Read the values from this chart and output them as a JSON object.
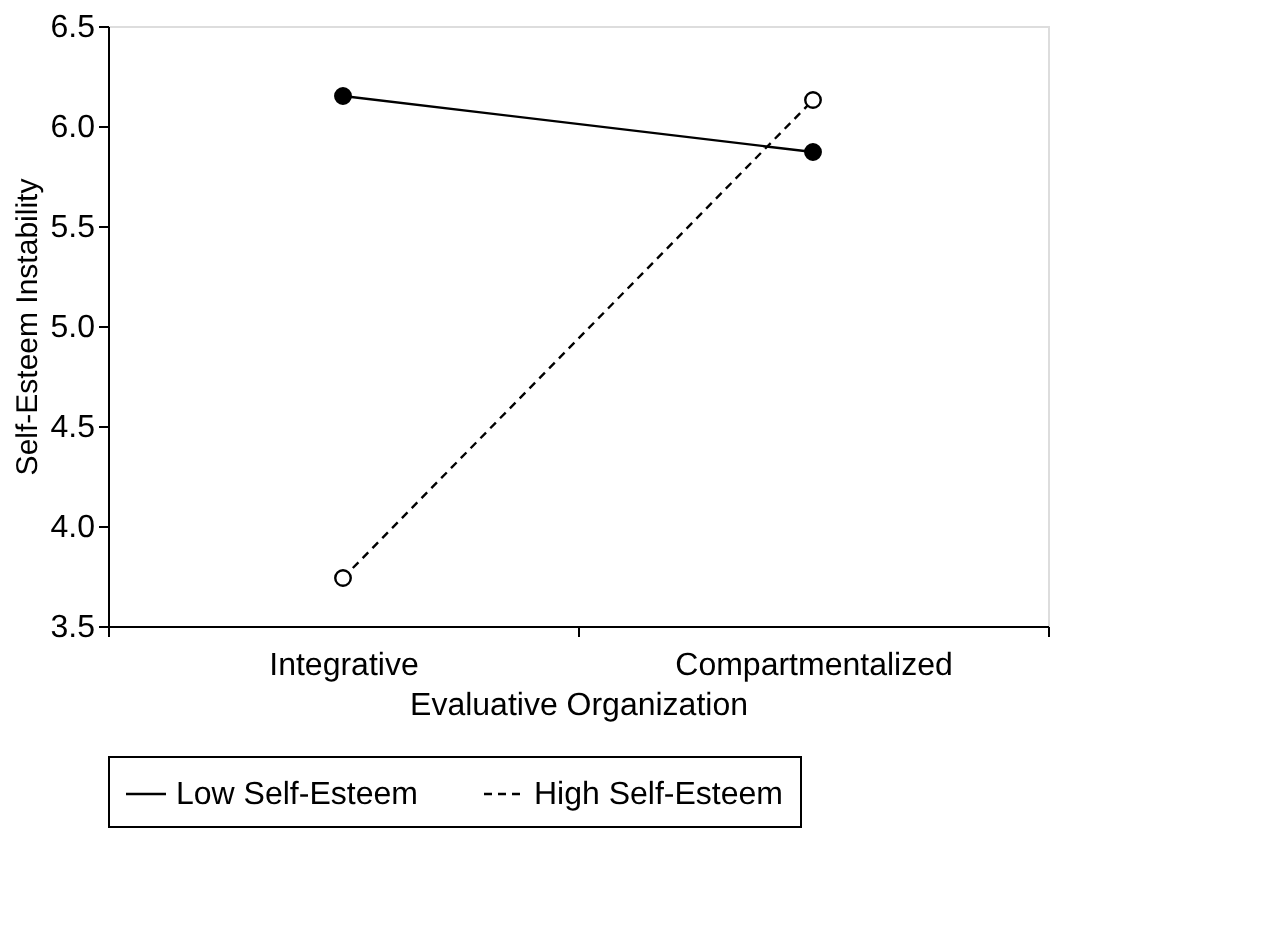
{
  "chart_data": {
    "type": "line",
    "xlabel": "Evaluative Organization",
    "ylabel": "Self-Esteem Instability",
    "categories": [
      "Integrative",
      "Compartmentalized"
    ],
    "series": [
      {
        "name": "Low Self-Esteem",
        "color": "#000000",
        "values": [
          6.15,
          5.87
        ],
        "line_style": "solid"
      },
      {
        "name": "High Self-Esteem",
        "color": "#000000",
        "values": [
          3.74,
          6.13
        ],
        "line_style": "dashed"
      }
    ],
    "ylim": [
      3.5,
      6.5
    ],
    "yticks": [
      3.5,
      {
        "value": 4,
        "label": "4.0"
      },
      4.5,
      {
        "value": 5,
        "label": "5.0"
      },
      5.5,
      {
        "value": 6,
        "label": "6.0"
      },
      6.5
    ],
    "grid": false,
    "legend": "bottom",
    "marker": "circle"
  }
}
